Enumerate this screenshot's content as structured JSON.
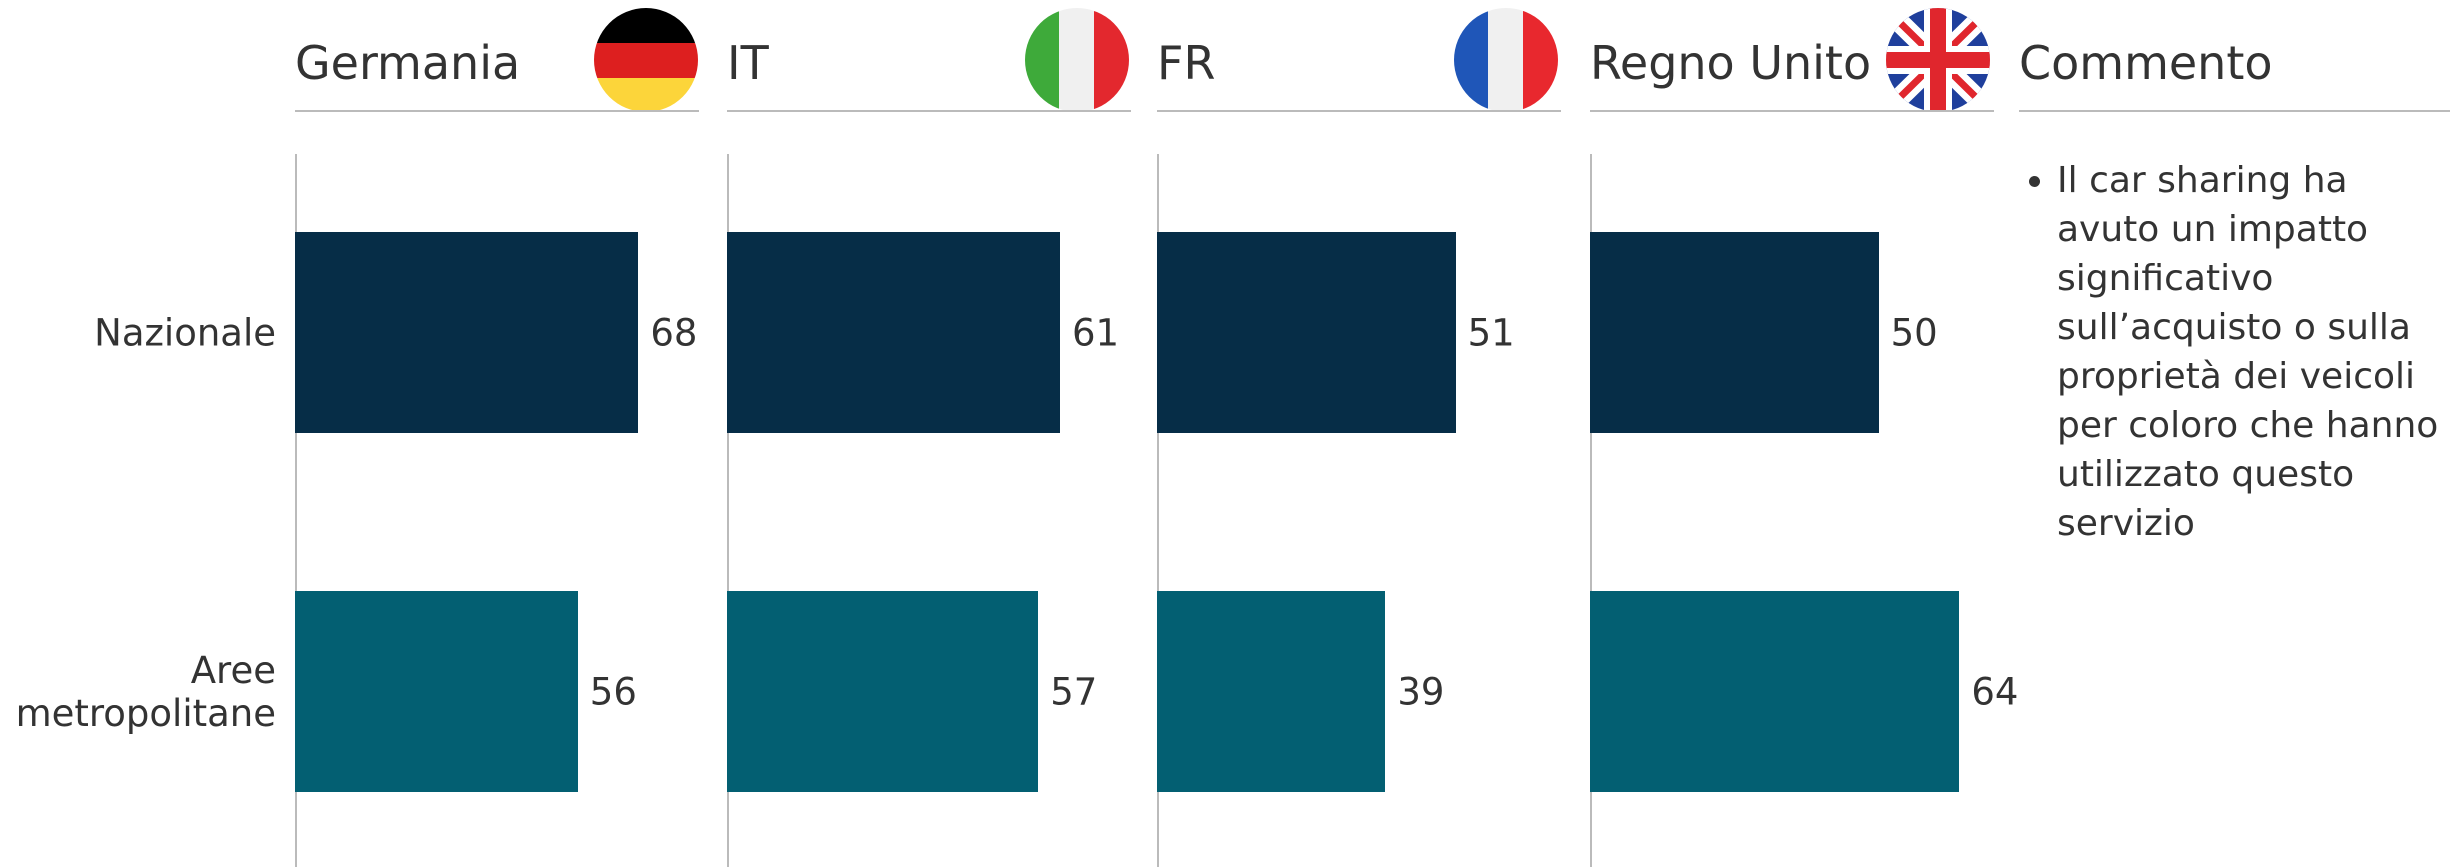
{
  "categories": [
    "Nazionale",
    "Aree metropolitane"
  ],
  "chart_data": [
    {
      "type": "bar",
      "title": "Germania",
      "series": [
        {
          "name": "Nazionale",
          "color": "#062d47",
          "values": [
            68
          ]
        },
        {
          "name": "Aree metropolitane",
          "color": "#035f72",
          "values": [
            56
          ]
        }
      ],
      "xlim": [
        0,
        80
      ]
    },
    {
      "type": "bar",
      "title": "IT",
      "series": [
        {
          "name": "Nazionale",
          "color": "#062d47",
          "values": [
            61
          ]
        },
        {
          "name": "Aree metropolitane",
          "color": "#035f72",
          "values": [
            57
          ]
        }
      ],
      "xlim": [
        0,
        74
      ]
    },
    {
      "type": "bar",
      "title": "FR",
      "series": [
        {
          "name": "Nazionale",
          "color": "#062d47",
          "values": [
            51
          ]
        },
        {
          "name": "Aree metropolitane",
          "color": "#035f72",
          "values": [
            39
          ]
        }
      ],
      "xlim": [
        0,
        69
      ]
    },
    {
      "type": "bar",
      "title": "Regno Unito",
      "series": [
        {
          "name": "Nazionale",
          "color": "#062d47",
          "values": [
            50
          ]
        },
        {
          "name": "Aree metropolitane",
          "color": "#035f72",
          "values": [
            64
          ]
        }
      ],
      "xlim": [
        0,
        70
      ]
    }
  ],
  "comment": {
    "title": "Commento",
    "bullets": [
      "Il car sharing ha avuto un impatto significativo sull’acquisto o sulla proprietà dei veicoli per coloro che hanno utilizzato questo servizio"
    ]
  }
}
